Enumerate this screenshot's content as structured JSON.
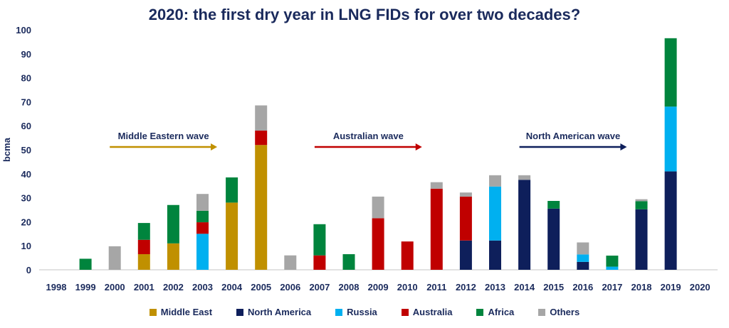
{
  "chart_data": {
    "type": "bar",
    "stacked": true,
    "title": "2020: the first dry year in LNG FIDs for over two decades?",
    "ylabel": "bcma",
    "xlabel": "",
    "ylim": [
      0,
      100
    ],
    "yticks": [
      0,
      10,
      20,
      30,
      40,
      50,
      60,
      70,
      80,
      90,
      100
    ],
    "grid": false,
    "legend_position": "bottom",
    "categories": [
      "1998",
      "1999",
      "2000",
      "2001",
      "2002",
      "2003",
      "2004",
      "2005",
      "2006",
      "2007",
      "2008",
      "2009",
      "2010",
      "2011",
      "2012",
      "2013",
      "2014",
      "2015",
      "2016",
      "2017",
      "2018",
      "2019",
      "2020"
    ],
    "series": [
      {
        "name": "Middle East",
        "color": "#C09000",
        "values": [
          0,
          0,
          0,
          6.5,
          11,
          0,
          28,
          52,
          0,
          0,
          0,
          0,
          0,
          0,
          0,
          0,
          0,
          0,
          0,
          0,
          0,
          0,
          0
        ]
      },
      {
        "name": "North America",
        "color": "#0E1F5B",
        "values": [
          0,
          0,
          0,
          0,
          0,
          0,
          0,
          0,
          0,
          0,
          0,
          0,
          0,
          0,
          12.2,
          12.2,
          37.5,
          25.5,
          3.3,
          0,
          25.2,
          41,
          0
        ]
      },
      {
        "name": "Russia",
        "color": "#00B0F0",
        "values": [
          0,
          0,
          0,
          0,
          0,
          15,
          0,
          0,
          0,
          0,
          0,
          0,
          0,
          0,
          0,
          22.5,
          0,
          0,
          3.1,
          1.3,
          0,
          27,
          0
        ]
      },
      {
        "name": "Australia",
        "color": "#C00000",
        "values": [
          0,
          0,
          0,
          6,
          0,
          4.8,
          0,
          6,
          0,
          6,
          0,
          21.5,
          11.8,
          33.8,
          18.3,
          0,
          0,
          0,
          0,
          0,
          0,
          0,
          0
        ]
      },
      {
        "name": "Africa",
        "color": "#00843D",
        "values": [
          0,
          4.6,
          0,
          7,
          16,
          4.8,
          10.5,
          0,
          0,
          13,
          6.5,
          0,
          0,
          0,
          0,
          0,
          0,
          3.2,
          0,
          4.6,
          3.4,
          28.5,
          0
        ]
      },
      {
        "name": "Others",
        "color": "#A6A6A6",
        "values": [
          0,
          0,
          9.8,
          0,
          0,
          7,
          0,
          10.5,
          6,
          0,
          0,
          9,
          0,
          2.7,
          1.7,
          4.7,
          1.9,
          0,
          5,
          0,
          0.8,
          0,
          0
        ]
      }
    ],
    "annotations": [
      {
        "text": "Middle Eastern wave",
        "color": "#C09000",
        "from": "2000",
        "to": "2003.5"
      },
      {
        "text": "Australian wave",
        "color": "#C00000",
        "from": "2007",
        "to": "2010.5"
      },
      {
        "text": "North American wave",
        "color": "#0E1F5B",
        "from": "2014",
        "to": "2017.5"
      }
    ]
  }
}
